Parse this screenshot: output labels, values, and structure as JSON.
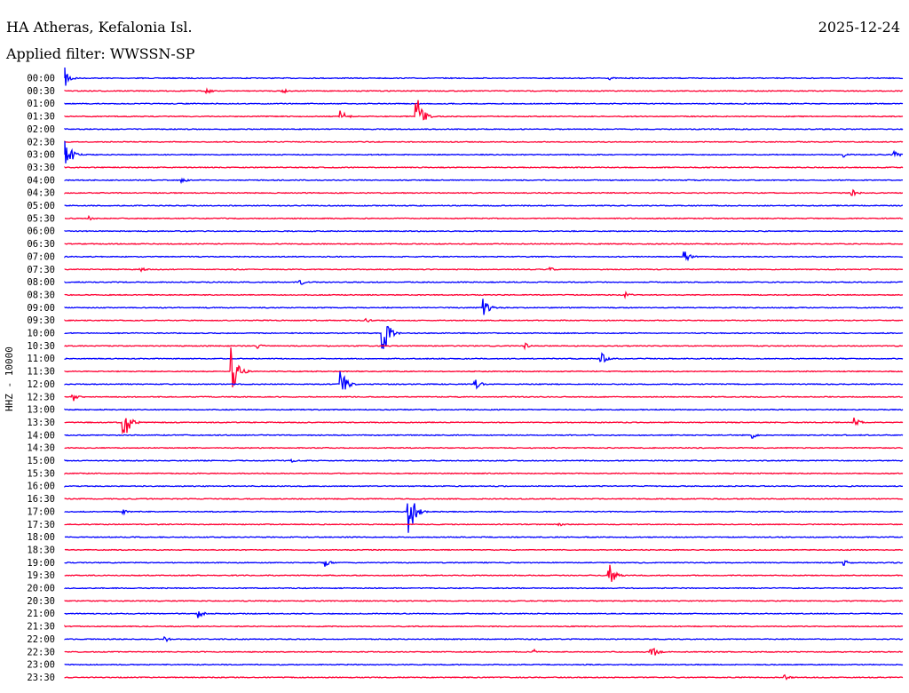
{
  "header": {
    "station": "HA Atheras, Kefalonia Isl.",
    "date": "2025-12-24",
    "filter": "Applied filter: WWSSN-SP",
    "channel": "HHZ - 10000"
  },
  "chart_data": {
    "type": "line",
    "title": "HA Atheras, Kefalonia Isl.",
    "ylabel": "HHZ - 10000",
    "colors": [
      "#0000ff",
      "#ff0033"
    ],
    "rows": [
      {
        "time": "00:00",
        "color": "#0000ff",
        "events": [
          {
            "x": 0.0,
            "amp": 12
          },
          {
            "x": 0.65,
            "amp": 2
          }
        ]
      },
      {
        "time": "00:30",
        "color": "#ff0033",
        "events": [
          {
            "x": 0.17,
            "amp": 3
          },
          {
            "x": 0.26,
            "amp": 3
          }
        ]
      },
      {
        "time": "01:00",
        "color": "#0000ff",
        "events": []
      },
      {
        "time": "01:30",
        "color": "#ff0033",
        "events": [
          {
            "x": 0.33,
            "amp": 7
          },
          {
            "x": 0.42,
            "amp": 24
          }
        ]
      },
      {
        "time": "02:00",
        "color": "#0000ff",
        "events": []
      },
      {
        "time": "02:30",
        "color": "#ff0033",
        "events": []
      },
      {
        "time": "03:00",
        "color": "#0000ff",
        "events": [
          {
            "x": 0.0,
            "amp": 25
          },
          {
            "x": 0.93,
            "amp": 3
          },
          {
            "x": 0.99,
            "amp": 5
          }
        ]
      },
      {
        "time": "03:30",
        "color": "#ff0033",
        "events": []
      },
      {
        "time": "04:00",
        "color": "#0000ff",
        "events": [
          {
            "x": 0.14,
            "amp": 3
          }
        ]
      },
      {
        "time": "04:30",
        "color": "#ff0033",
        "events": [
          {
            "x": 0.94,
            "amp": 4
          }
        ]
      },
      {
        "time": "05:00",
        "color": "#0000ff",
        "events": []
      },
      {
        "time": "05:30",
        "color": "#ff0033",
        "events": [
          {
            "x": 0.03,
            "amp": 3
          }
        ]
      },
      {
        "time": "06:00",
        "color": "#0000ff",
        "events": []
      },
      {
        "time": "06:30",
        "color": "#ff0033",
        "events": []
      },
      {
        "time": "07:00",
        "color": "#0000ff",
        "events": [
          {
            "x": 0.74,
            "amp": 7
          }
        ]
      },
      {
        "time": "07:30",
        "color": "#ff0033",
        "events": [
          {
            "x": 0.09,
            "amp": 3
          },
          {
            "x": 0.58,
            "amp": 2
          }
        ]
      },
      {
        "time": "08:00",
        "color": "#0000ff",
        "events": [
          {
            "x": 0.28,
            "amp": 4
          }
        ]
      },
      {
        "time": "08:30",
        "color": "#ff0033",
        "events": [
          {
            "x": 0.67,
            "amp": 3
          }
        ]
      },
      {
        "time": "09:00",
        "color": "#0000ff",
        "events": [
          {
            "x": 0.5,
            "amp": 11
          }
        ]
      },
      {
        "time": "09:30",
        "color": "#ff0033",
        "events": [
          {
            "x": 0.36,
            "amp": 3
          }
        ]
      },
      {
        "time": "10:00",
        "color": "#0000ff",
        "events": [
          {
            "x": 0.38,
            "amp": 28
          }
        ]
      },
      {
        "time": "10:30",
        "color": "#ff0033",
        "events": [
          {
            "x": 0.23,
            "amp": 3
          },
          {
            "x": 0.55,
            "amp": 3
          }
        ]
      },
      {
        "time": "11:00",
        "color": "#0000ff",
        "events": [
          {
            "x": 0.64,
            "amp": 8
          }
        ]
      },
      {
        "time": "11:30",
        "color": "#ff0033",
        "events": [
          {
            "x": 0.2,
            "amp": 30
          }
        ]
      },
      {
        "time": "12:00",
        "color": "#0000ff",
        "events": [
          {
            "x": 0.33,
            "amp": 16
          },
          {
            "x": 0.49,
            "amp": 6
          }
        ]
      },
      {
        "time": "12:30",
        "color": "#ff0033",
        "events": [
          {
            "x": 0.01,
            "amp": 5
          }
        ]
      },
      {
        "time": "13:00",
        "color": "#0000ff",
        "events": []
      },
      {
        "time": "13:30",
        "color": "#ff0033",
        "events": [
          {
            "x": 0.07,
            "amp": 26
          },
          {
            "x": 0.94,
            "amp": 9
          }
        ]
      },
      {
        "time": "14:00",
        "color": "#0000ff",
        "events": [
          {
            "x": 0.82,
            "amp": 4
          }
        ]
      },
      {
        "time": "14:30",
        "color": "#ff0033",
        "events": []
      },
      {
        "time": "15:00",
        "color": "#0000ff",
        "events": [
          {
            "x": 0.27,
            "amp": 2
          }
        ]
      },
      {
        "time": "15:30",
        "color": "#ff0033",
        "events": []
      },
      {
        "time": "16:00",
        "color": "#0000ff",
        "events": []
      },
      {
        "time": "16:30",
        "color": "#ff0033",
        "events": []
      },
      {
        "time": "17:00",
        "color": "#0000ff",
        "events": [
          {
            "x": 0.41,
            "amp": 36
          },
          {
            "x": 0.07,
            "amp": 3
          }
        ]
      },
      {
        "time": "17:30",
        "color": "#ff0033",
        "events": [
          {
            "x": 0.59,
            "amp": 2
          }
        ]
      },
      {
        "time": "18:00",
        "color": "#0000ff",
        "events": []
      },
      {
        "time": "18:30",
        "color": "#ff0033",
        "events": []
      },
      {
        "time": "19:00",
        "color": "#0000ff",
        "events": [
          {
            "x": 0.31,
            "amp": 5
          },
          {
            "x": 0.93,
            "amp": 4
          }
        ]
      },
      {
        "time": "19:30",
        "color": "#ff0033",
        "events": [
          {
            "x": 0.65,
            "amp": 13
          }
        ]
      },
      {
        "time": "20:00",
        "color": "#0000ff",
        "events": []
      },
      {
        "time": "20:30",
        "color": "#ff0033",
        "events": []
      },
      {
        "time": "21:00",
        "color": "#0000ff",
        "events": [
          {
            "x": 0.16,
            "amp": 5
          }
        ]
      },
      {
        "time": "21:30",
        "color": "#ff0033",
        "events": []
      },
      {
        "time": "22:00",
        "color": "#0000ff",
        "events": [
          {
            "x": 0.12,
            "amp": 4
          }
        ]
      },
      {
        "time": "22:30",
        "color": "#ff0033",
        "events": [
          {
            "x": 0.56,
            "amp": 3
          },
          {
            "x": 0.7,
            "amp": 8
          }
        ]
      },
      {
        "time": "23:00",
        "color": "#0000ff",
        "events": []
      },
      {
        "time": "23:30",
        "color": "#ff0033",
        "events": [
          {
            "x": 0.86,
            "amp": 3
          }
        ]
      }
    ]
  }
}
